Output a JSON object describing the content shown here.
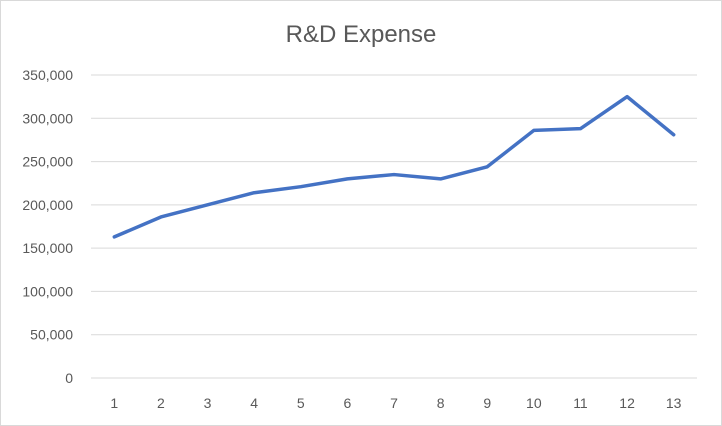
{
  "chart_data": {
    "type": "line",
    "title": "R&D Expense",
    "xlabel": "",
    "ylabel": "",
    "x": [
      1,
      2,
      3,
      4,
      5,
      6,
      7,
      8,
      9,
      10,
      11,
      12,
      13
    ],
    "x_tick_labels": [
      "1",
      "2",
      "3",
      "4",
      "5",
      "6",
      "7",
      "8",
      "9",
      "10",
      "11",
      "12",
      "13"
    ],
    "y_tick_labels": [
      "0",
      "50,000",
      "100,000",
      "150,000",
      "200,000",
      "250,000",
      "300,000",
      "350,000"
    ],
    "y_ticks": [
      0,
      50000,
      100000,
      150000,
      200000,
      250000,
      300000,
      350000
    ],
    "ylim": [
      0,
      350000
    ],
    "grid": true,
    "legend": "none",
    "series": [
      {
        "color": "#4472c4",
        "values": [
          163000,
          186000,
          200000,
          214000,
          221000,
          230000,
          235000,
          230000,
          244000,
          286000,
          288000,
          325000,
          281000
        ]
      }
    ]
  }
}
